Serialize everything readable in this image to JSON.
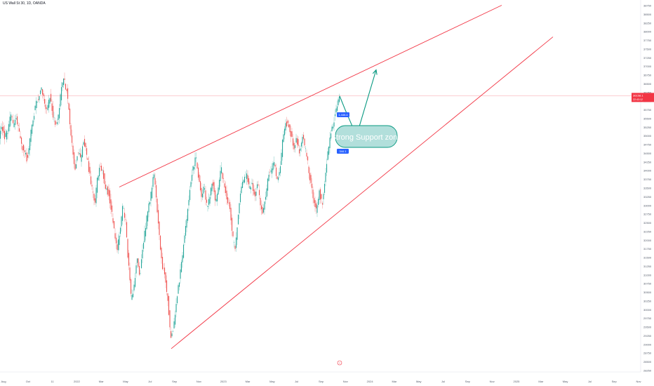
{
  "symbol_line": "US Wall St 30, 1D, OANDA",
  "colors": {
    "up": "#26a69a",
    "down": "#ef5350",
    "channel": "#f23645",
    "arrow": "#089981",
    "label_bg": "#b2dfdb",
    "price_line": "#f23645"
  },
  "annotations": {
    "zone_label": "Strong Support zone",
    "tag_upper": "1,446.4",
    "tag_lower": "344.1",
    "footer_badge": "⚡"
  },
  "price_tag": {
    "value": "36158.1",
    "sub": "22:43:12"
  },
  "chart_data": {
    "type": "candlestick",
    "title": "US Wall St 30, 1D, OANDA",
    "x_ticks": [
      "Aug",
      "Oct",
      "11",
      "2022",
      "Mar",
      "May",
      "Jul",
      "Sep",
      "Nov",
      "2023",
      "Mar",
      "May",
      "Jul",
      "Sep",
      "Nov",
      "2024",
      "Mar",
      "May",
      "Jul",
      "Sep",
      "Nov",
      "2025",
      "Mar",
      "May",
      "Jul",
      "Sep",
      "Nov"
    ],
    "y_ticks": [
      28250,
      28500,
      28750,
      29000,
      29250,
      29500,
      29750,
      30000,
      30250,
      30500,
      30750,
      31000,
      31250,
      31500,
      31750,
      32000,
      32250,
      32500,
      32750,
      33000,
      33250,
      33500,
      33750,
      34000,
      34250,
      34500,
      34750,
      35000,
      35250,
      35500,
      35750,
      36000,
      36250,
      36500,
      36750,
      37000,
      37250,
      37500,
      37750,
      38000,
      38250,
      38500,
      38750
    ],
    "ylim": [
      28250,
      38750
    ],
    "last_price": 36158.1,
    "price_path": [
      [
        0,
        35020
      ],
      [
        4,
        35250
      ],
      [
        8,
        34950
      ],
      [
        12,
        35150
      ],
      [
        16,
        35600
      ],
      [
        20,
        35300
      ],
      [
        24,
        35500
      ],
      [
        28,
        35100
      ],
      [
        32,
        34700
      ],
      [
        36,
        34500
      ],
      [
        40,
        34300
      ],
      [
        44,
        35000
      ],
      [
        48,
        35500
      ],
      [
        52,
        35900
      ],
      [
        56,
        36100
      ],
      [
        60,
        36400
      ],
      [
        64,
        36000
      ],
      [
        68,
        35700
      ],
      [
        72,
        36150
      ],
      [
        76,
        35650
      ],
      [
        80,
        35300
      ],
      [
        84,
        35550
      ],
      [
        88,
        36300
      ],
      [
        92,
        36650
      ],
      [
        96,
        36300
      ],
      [
        100,
        35500
      ],
      [
        104,
        34700
      ],
      [
        108,
        34000
      ],
      [
        112,
        34600
      ],
      [
        116,
        34300
      ],
      [
        120,
        34900
      ],
      [
        124,
        34500
      ],
      [
        128,
        34000
      ],
      [
        132,
        33450
      ],
      [
        136,
        33050
      ],
      [
        140,
        33800
      ],
      [
        144,
        34200
      ],
      [
        148,
        33900
      ],
      [
        152,
        33500
      ],
      [
        156,
        33350
      ],
      [
        160,
        32800
      ],
      [
        164,
        32200
      ],
      [
        168,
        31700
      ],
      [
        172,
        32300
      ],
      [
        176,
        33000
      ],
      [
        180,
        32500
      ],
      [
        184,
        31300
      ],
      [
        188,
        30250
      ],
      [
        192,
        30700
      ],
      [
        196,
        31500
      ],
      [
        200,
        30900
      ],
      [
        204,
        31750
      ],
      [
        208,
        32350
      ],
      [
        212,
        32900
      ],
      [
        216,
        33300
      ],
      [
        220,
        33950
      ],
      [
        224,
        33100
      ],
      [
        228,
        32100
      ],
      [
        232,
        31300
      ],
      [
        236,
        31000
      ],
      [
        240,
        30300
      ],
      [
        244,
        29200
      ],
      [
        248,
        29450
      ],
      [
        252,
        30100
      ],
      [
        256,
        30800
      ],
      [
        260,
        31400
      ],
      [
        264,
        32100
      ],
      [
        268,
        32800
      ],
      [
        272,
        33650
      ],
      [
        276,
        34100
      ],
      [
        280,
        34350
      ],
      [
        284,
        33800
      ],
      [
        288,
        33250
      ],
      [
        292,
        33600
      ],
      [
        296,
        32900
      ],
      [
        300,
        33300
      ],
      [
        304,
        33700
      ],
      [
        308,
        33100
      ],
      [
        312,
        33500
      ],
      [
        316,
        34050
      ],
      [
        320,
        33650
      ],
      [
        324,
        33250
      ],
      [
        328,
        33000
      ],
      [
        332,
        32100
      ],
      [
        336,
        31800
      ],
      [
        340,
        32600
      ],
      [
        344,
        33400
      ],
      [
        348,
        33700
      ],
      [
        352,
        33900
      ],
      [
        356,
        33500
      ],
      [
        360,
        33600
      ],
      [
        364,
        33200
      ],
      [
        368,
        33650
      ],
      [
        372,
        33000
      ],
      [
        376,
        32800
      ],
      [
        380,
        33400
      ],
      [
        384,
        33900
      ],
      [
        388,
        34000
      ],
      [
        392,
        34250
      ],
      [
        396,
        33700
      ],
      [
        400,
        34000
      ],
      [
        404,
        34950
      ],
      [
        408,
        35400
      ],
      [
        412,
        35300
      ],
      [
        416,
        35000
      ],
      [
        420,
        34700
      ],
      [
        424,
        34900
      ],
      [
        428,
        34500
      ],
      [
        432,
        35050
      ],
      [
        436,
        34600
      ],
      [
        440,
        34150
      ],
      [
        444,
        33600
      ],
      [
        448,
        33200
      ],
      [
        452,
        32800
      ],
      [
        456,
        33400
      ],
      [
        460,
        33000
      ],
      [
        464,
        33800
      ],
      [
        468,
        34500
      ],
      [
        472,
        35000
      ],
      [
        476,
        35400
      ],
      [
        480,
        35700
      ],
      [
        484,
        36150
      ]
    ],
    "overlays": [
      {
        "kind": "channel-upper",
        "from": [
          170,
          33530
        ],
        "to": [
          715,
          38760
        ]
      },
      {
        "kind": "channel-lower",
        "from": [
          244,
          28880
        ],
        "to": [
          788,
          37850
        ]
      },
      {
        "kind": "projection",
        "points": [
          [
            484,
            36150
          ],
          [
            492,
            35750
          ],
          [
            508,
            35000
          ],
          [
            536,
            36900
          ]
        ]
      }
    ]
  }
}
